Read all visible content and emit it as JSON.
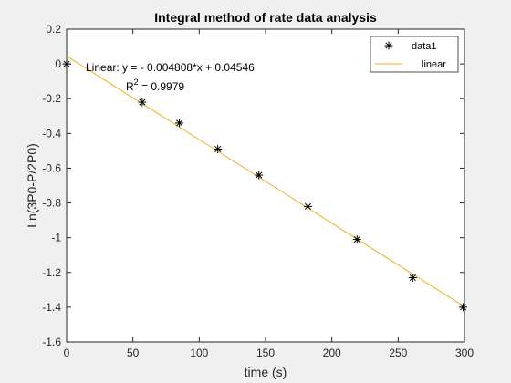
{
  "chart_data": {
    "type": "scatter",
    "title": "Integral method of rate data analysis",
    "xlabel": "time (s)",
    "ylabel": "Ln(3P0-P/2P0)",
    "xlim": [
      0,
      300
    ],
    "ylim": [
      -1.6,
      0.2
    ],
    "xticks": [
      "0",
      "50",
      "100",
      "150",
      "200",
      "250",
      "300"
    ],
    "yticks": [
      "0.2",
      "0",
      "-0.2",
      "-0.4",
      "-0.6",
      "-0.8",
      "-1",
      "-1.2",
      "-1.4",
      "-1.6"
    ],
    "grid": false,
    "legend_position": "top-right",
    "series": [
      {
        "name": "data1",
        "marker": "asterisk",
        "color": "#000000",
        "x": [
          0,
          57,
          85,
          114,
          145,
          182,
          219,
          261,
          299
        ],
        "y": [
          0.0,
          -0.22,
          -0.34,
          -0.49,
          -0.64,
          -0.82,
          -1.01,
          -1.23,
          -1.4
        ]
      },
      {
        "name": "linear",
        "style": "line",
        "color": "#edb120",
        "slope": -0.004808,
        "intercept": 0.04546,
        "x": [
          0,
          300
        ]
      }
    ],
    "annotations": {
      "equation": "Linear:  y = - 0.004808*x + 0.04546",
      "r2_label": "R",
      "r2_sup": "2",
      "r2_value": " = 0.9979"
    }
  },
  "colors": {
    "figure_bg": "#f0f0f0",
    "axes_bg": "#ffffff",
    "axis_line": "#262626",
    "fit_line": "#edb120",
    "marker": "#000000"
  }
}
